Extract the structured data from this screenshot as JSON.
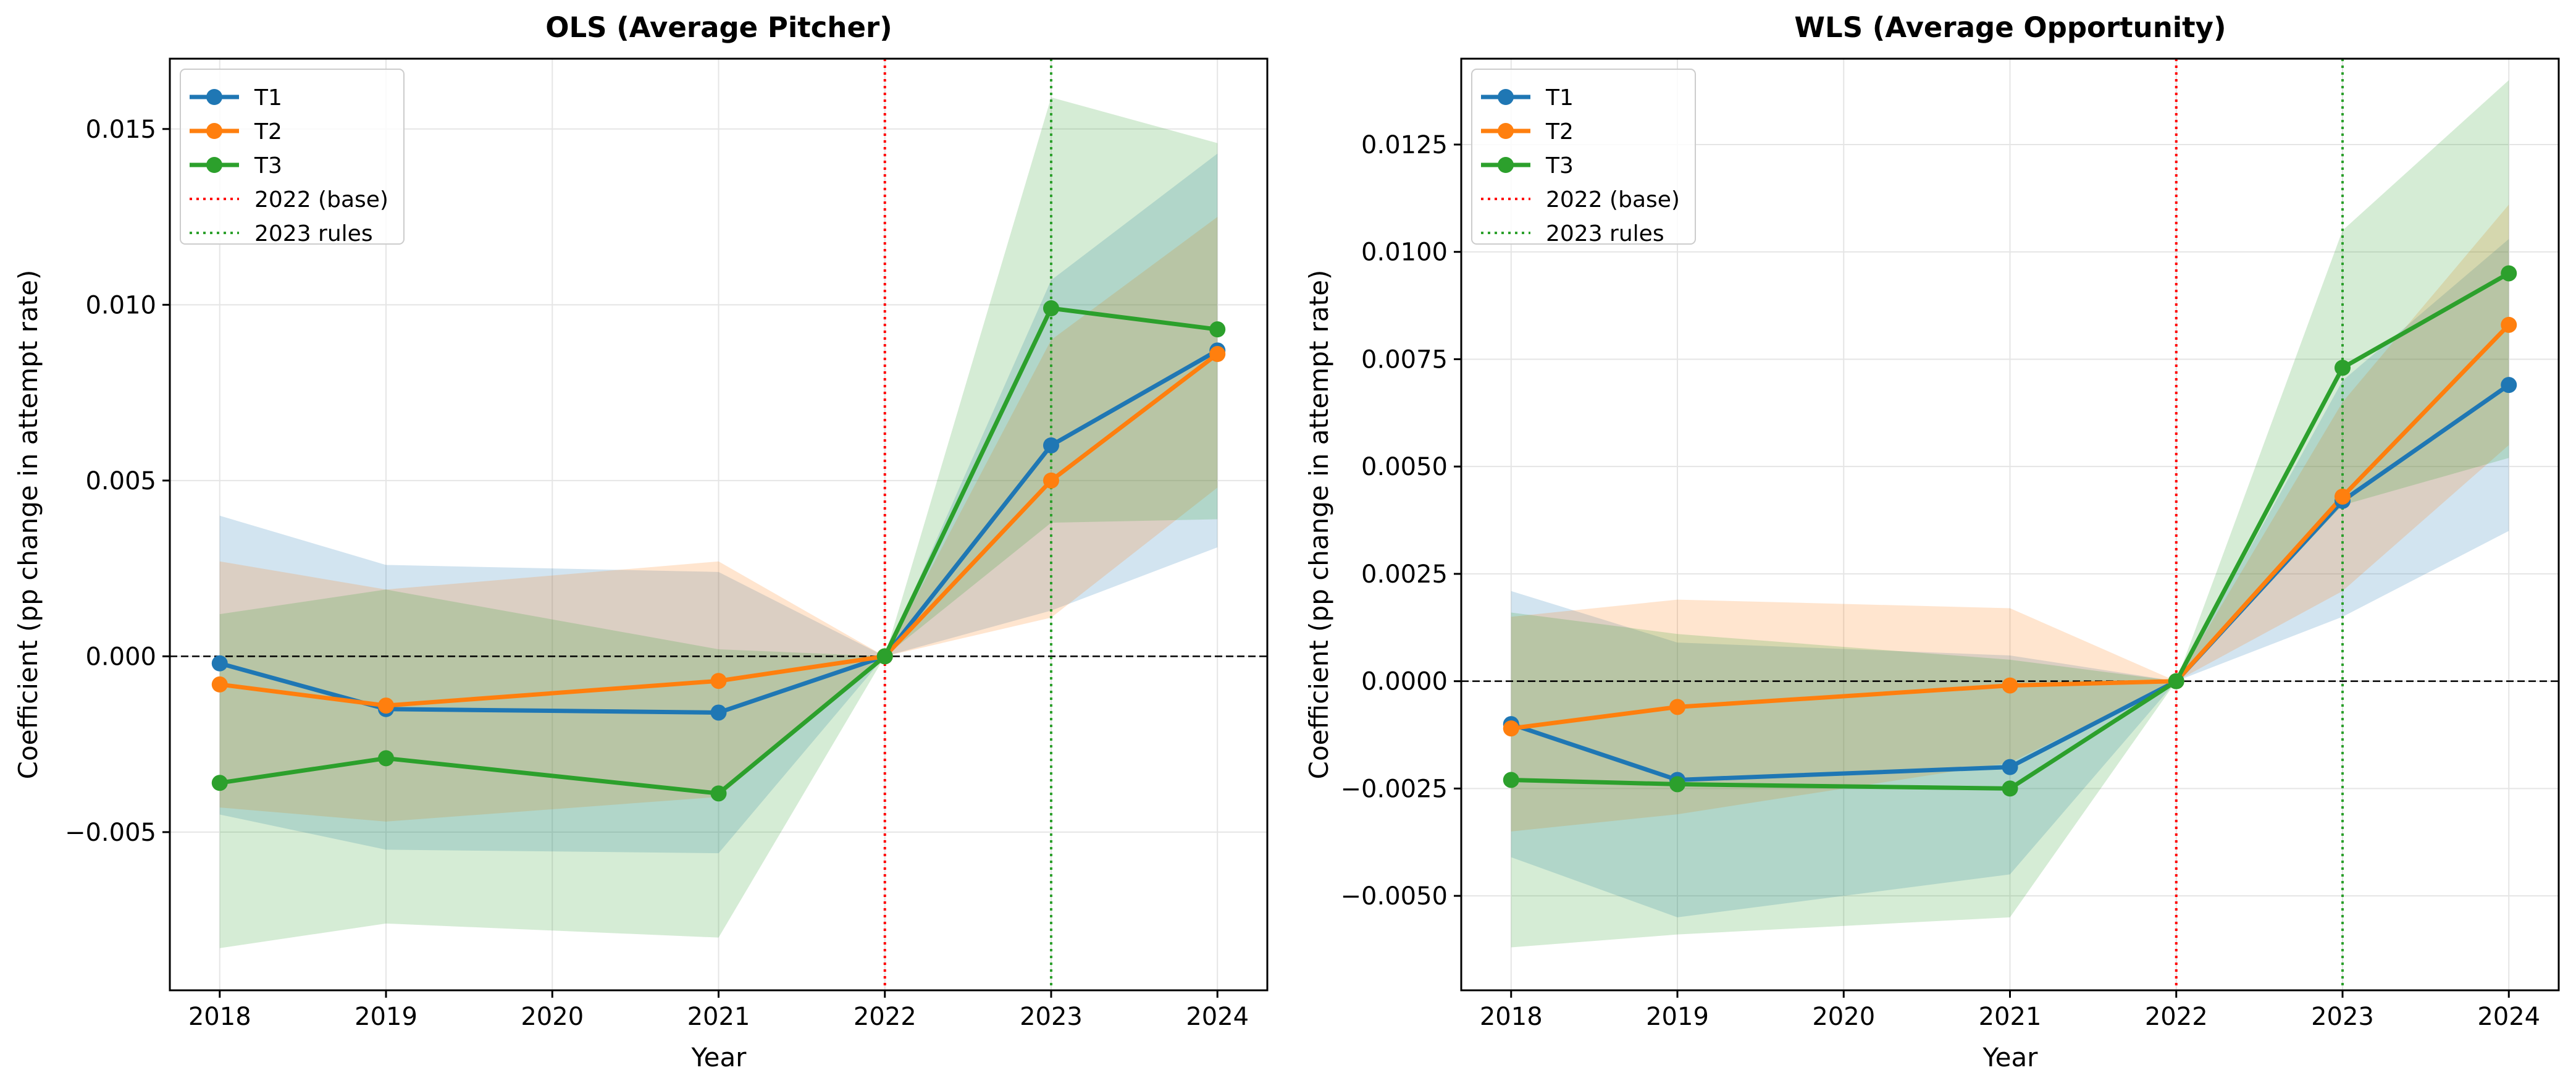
{
  "colors": {
    "T1": "#1f77b4",
    "T2": "#ff7f0e",
    "T3": "#2ca02c",
    "base_line": "#ff0000",
    "rules_line": "#2ca02c",
    "zero_line": "#000000",
    "grid": "#e5e5e5"
  },
  "chart_data": [
    {
      "type": "line",
      "title": "OLS (Average Pitcher)",
      "xlabel": "Year",
      "ylabel": "Coefficient (pp change in attempt rate)",
      "x": [
        2018,
        2019,
        2021,
        2022,
        2023,
        2024
      ],
      "xlim": [
        2017.7,
        2024.3
      ],
      "ylim": [
        -0.0095,
        0.017
      ],
      "xticks": [
        2018,
        2019,
        2020,
        2021,
        2022,
        2023,
        2024
      ],
      "xtick_labels": [
        "2018",
        "2019",
        "2020",
        "2021",
        "2022",
        "2023",
        "2024"
      ],
      "yticks": [
        -0.005,
        0.0,
        0.005,
        0.01,
        0.015
      ],
      "ytick_labels": [
        "−0.005",
        "0.000",
        "0.005",
        "0.010",
        "0.015"
      ],
      "grid": true,
      "legend_position": "top-left",
      "series": [
        {
          "name": "T1",
          "values": [
            -0.0002,
            -0.0015,
            -0.0016,
            0.0,
            0.006,
            0.0087
          ],
          "ci_lower": [
            -0.0045,
            -0.0055,
            -0.0056,
            0.0,
            0.0013,
            0.0031
          ],
          "ci_upper": [
            0.004,
            0.0026,
            0.0024,
            0.0,
            0.0107,
            0.0143
          ]
        },
        {
          "name": "T2",
          "values": [
            -0.0008,
            -0.0014,
            -0.0007,
            0.0,
            0.005,
            0.0086
          ],
          "ci_lower": [
            -0.0043,
            -0.0047,
            -0.004,
            0.0,
            0.0011,
            0.0048
          ],
          "ci_upper": [
            0.0027,
            0.0019,
            0.0027,
            0.0,
            0.009,
            0.0125
          ]
        },
        {
          "name": "T3",
          "values": [
            -0.0036,
            -0.0029,
            -0.0039,
            0.0,
            0.0099,
            0.0093
          ],
          "ci_lower": [
            -0.0083,
            -0.0076,
            -0.008,
            0.0,
            0.0038,
            0.0039
          ],
          "ci_upper": [
            0.0012,
            0.0019,
            0.0002,
            0.0,
            0.0159,
            0.0146
          ]
        }
      ],
      "reference_lines": [
        {
          "name": "2022 (base)",
          "x": 2022,
          "color_key": "base_line"
        },
        {
          "name": "2023 rules",
          "x": 2023,
          "color_key": "rules_line"
        }
      ]
    },
    {
      "type": "line",
      "title": "WLS (Average Opportunity)",
      "xlabel": "Year",
      "ylabel": "Coefficient (pp change in attempt rate)",
      "x": [
        2018,
        2019,
        2021,
        2022,
        2023,
        2024
      ],
      "xlim": [
        2017.7,
        2024.3
      ],
      "ylim": [
        -0.0072,
        0.0145
      ],
      "xticks": [
        2018,
        2019,
        2020,
        2021,
        2022,
        2023,
        2024
      ],
      "xtick_labels": [
        "2018",
        "2019",
        "2020",
        "2021",
        "2022",
        "2023",
        "2024"
      ],
      "yticks": [
        -0.005,
        -0.0025,
        0.0,
        0.0025,
        0.005,
        0.0075,
        0.01,
        0.0125
      ],
      "ytick_labels": [
        "−0.0050",
        "−0.0025",
        "0.0000",
        "0.0025",
        "0.0050",
        "0.0075",
        "0.0100",
        "0.0125"
      ],
      "grid": true,
      "legend_position": "top-left",
      "series": [
        {
          "name": "T1",
          "values": [
            -0.001,
            -0.0023,
            -0.002,
            0.0,
            0.0042,
            0.0069
          ],
          "ci_lower": [
            -0.0041,
            -0.0055,
            -0.0045,
            0.0,
            0.0015,
            0.0035
          ],
          "ci_upper": [
            0.0021,
            0.0009,
            0.0006,
            0.0,
            0.007,
            0.0103
          ]
        },
        {
          "name": "T2",
          "values": [
            -0.0011,
            -0.0006,
            -0.0001,
            0.0,
            0.0043,
            0.0083
          ],
          "ci_lower": [
            -0.0035,
            -0.0031,
            -0.0019,
            0.0,
            0.0021,
            0.0055
          ],
          "ci_upper": [
            0.0015,
            0.0019,
            0.0017,
            0.0,
            0.0065,
            0.0111
          ]
        },
        {
          "name": "T3",
          "values": [
            -0.0023,
            -0.0024,
            -0.0025,
            0.0,
            0.0073,
            0.0095
          ],
          "ci_lower": [
            -0.0062,
            -0.0059,
            -0.0055,
            0.0,
            0.0041,
            0.0052
          ],
          "ci_upper": [
            0.0016,
            0.0011,
            0.0005,
            0.0,
            0.0105,
            0.014
          ]
        }
      ],
      "reference_lines": [
        {
          "name": "2022 (base)",
          "x": 2022,
          "color_key": "base_line"
        },
        {
          "name": "2023 rules",
          "x": 2023,
          "color_key": "rules_line"
        }
      ]
    }
  ]
}
